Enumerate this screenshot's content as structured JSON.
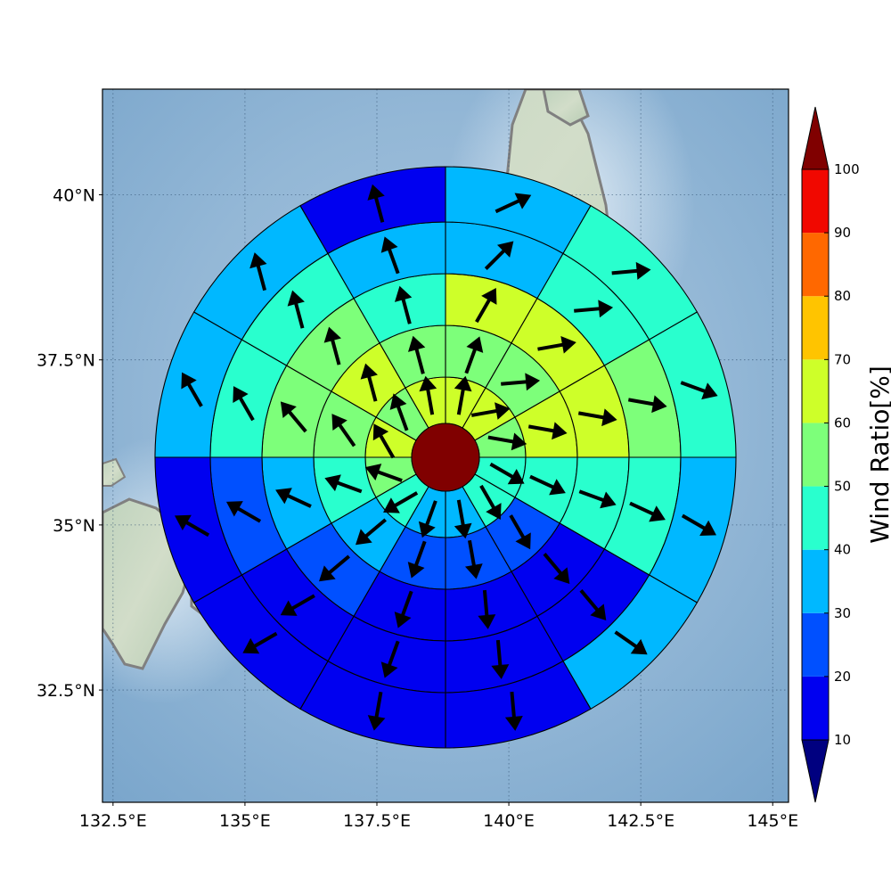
{
  "chart_data": {
    "type": "polar-sector-map",
    "title": "",
    "axes": {
      "x_ticks": [
        "132.5°E",
        "135°E",
        "137.5°E",
        "140°E",
        "142.5°E",
        "145°E"
      ],
      "x_tick_values": [
        132.5,
        135,
        137.5,
        140,
        142.5,
        145
      ],
      "y_ticks": [
        "40°N",
        "37.5°N",
        "35°N",
        "32.5°N"
      ],
      "y_tick_values": [
        40,
        37.5,
        35,
        32.5
      ],
      "lon_range": [
        132.3,
        145.3
      ],
      "lat_range": [
        30.8,
        41.6
      ],
      "grid": "dotted"
    },
    "rings": 5,
    "sectors_per_ring": 12,
    "sector_order": "clockwise from north, 30 degrees each",
    "center_value": 100,
    "ratio_percent": [
      [
        65,
        65,
        50,
        40,
        40,
        35,
        35,
        45,
        55,
        60,
        55,
        65
      ],
      [
        55,
        55,
        65,
        45,
        25,
        25,
        25,
        35,
        45,
        55,
        60,
        55
      ],
      [
        65,
        65,
        65,
        45,
        15,
        15,
        15,
        25,
        35,
        55,
        55,
        45
      ],
      [
        35,
        45,
        55,
        45,
        15,
        15,
        15,
        15,
        25,
        45,
        45,
        35
      ],
      [
        35,
        45,
        45,
        35,
        35,
        15,
        15,
        15,
        15,
        35,
        35,
        15
      ]
    ],
    "wind_direction_deg": [
      [
        10,
        80,
        100,
        120,
        150,
        170,
        200,
        240,
        290,
        330,
        340,
        350
      ],
      [
        20,
        85,
        100,
        115,
        150,
        170,
        200,
        230,
        290,
        325,
        345,
        345
      ],
      [
        30,
        80,
        100,
        110,
        140,
        175,
        200,
        230,
        295,
        320,
        345,
        345
      ],
      [
        45,
        85,
        100,
        115,
        140,
        175,
        200,
        240,
        300,
        330,
        345,
        340
      ],
      [
        65,
        85,
        110,
        120,
        125,
        175,
        190,
        240,
        300,
        330,
        345,
        345
      ]
    ],
    "colorbar": {
      "label": "Wind Ratio[%]",
      "ticks": [
        "10",
        "20",
        "30",
        "40",
        "50",
        "60",
        "70",
        "80",
        "90",
        "100"
      ],
      "bins": [
        {
          "min": 0,
          "max": 10,
          "color": "#000080"
        },
        {
          "min": 10,
          "max": 20,
          "color": "#0000f0"
        },
        {
          "min": 20,
          "max": 30,
          "color": "#0050ff"
        },
        {
          "min": 30,
          "max": 40,
          "color": "#00b8ff"
        },
        {
          "min": 40,
          "max": 50,
          "color": "#29ffce"
        },
        {
          "min": 50,
          "max": 60,
          "color": "#7dff7a"
        },
        {
          "min": 60,
          "max": 70,
          "color": "#ceff29"
        },
        {
          "min": 70,
          "max": 80,
          "color": "#ffc400"
        },
        {
          "min": 80,
          "max": 90,
          "color": "#ff6800"
        },
        {
          "min": 90,
          "max": 100,
          "color": "#f10800"
        },
        {
          "min": 100,
          "max": 110,
          "color": "#800000"
        }
      ],
      "extend": "both"
    },
    "colors": {
      "ocean": "#8fb3d1",
      "land": "#c7d6c0",
      "coastline": "#808080",
      "sector_edge": "#000000",
      "arrow": "#000000"
    }
  }
}
